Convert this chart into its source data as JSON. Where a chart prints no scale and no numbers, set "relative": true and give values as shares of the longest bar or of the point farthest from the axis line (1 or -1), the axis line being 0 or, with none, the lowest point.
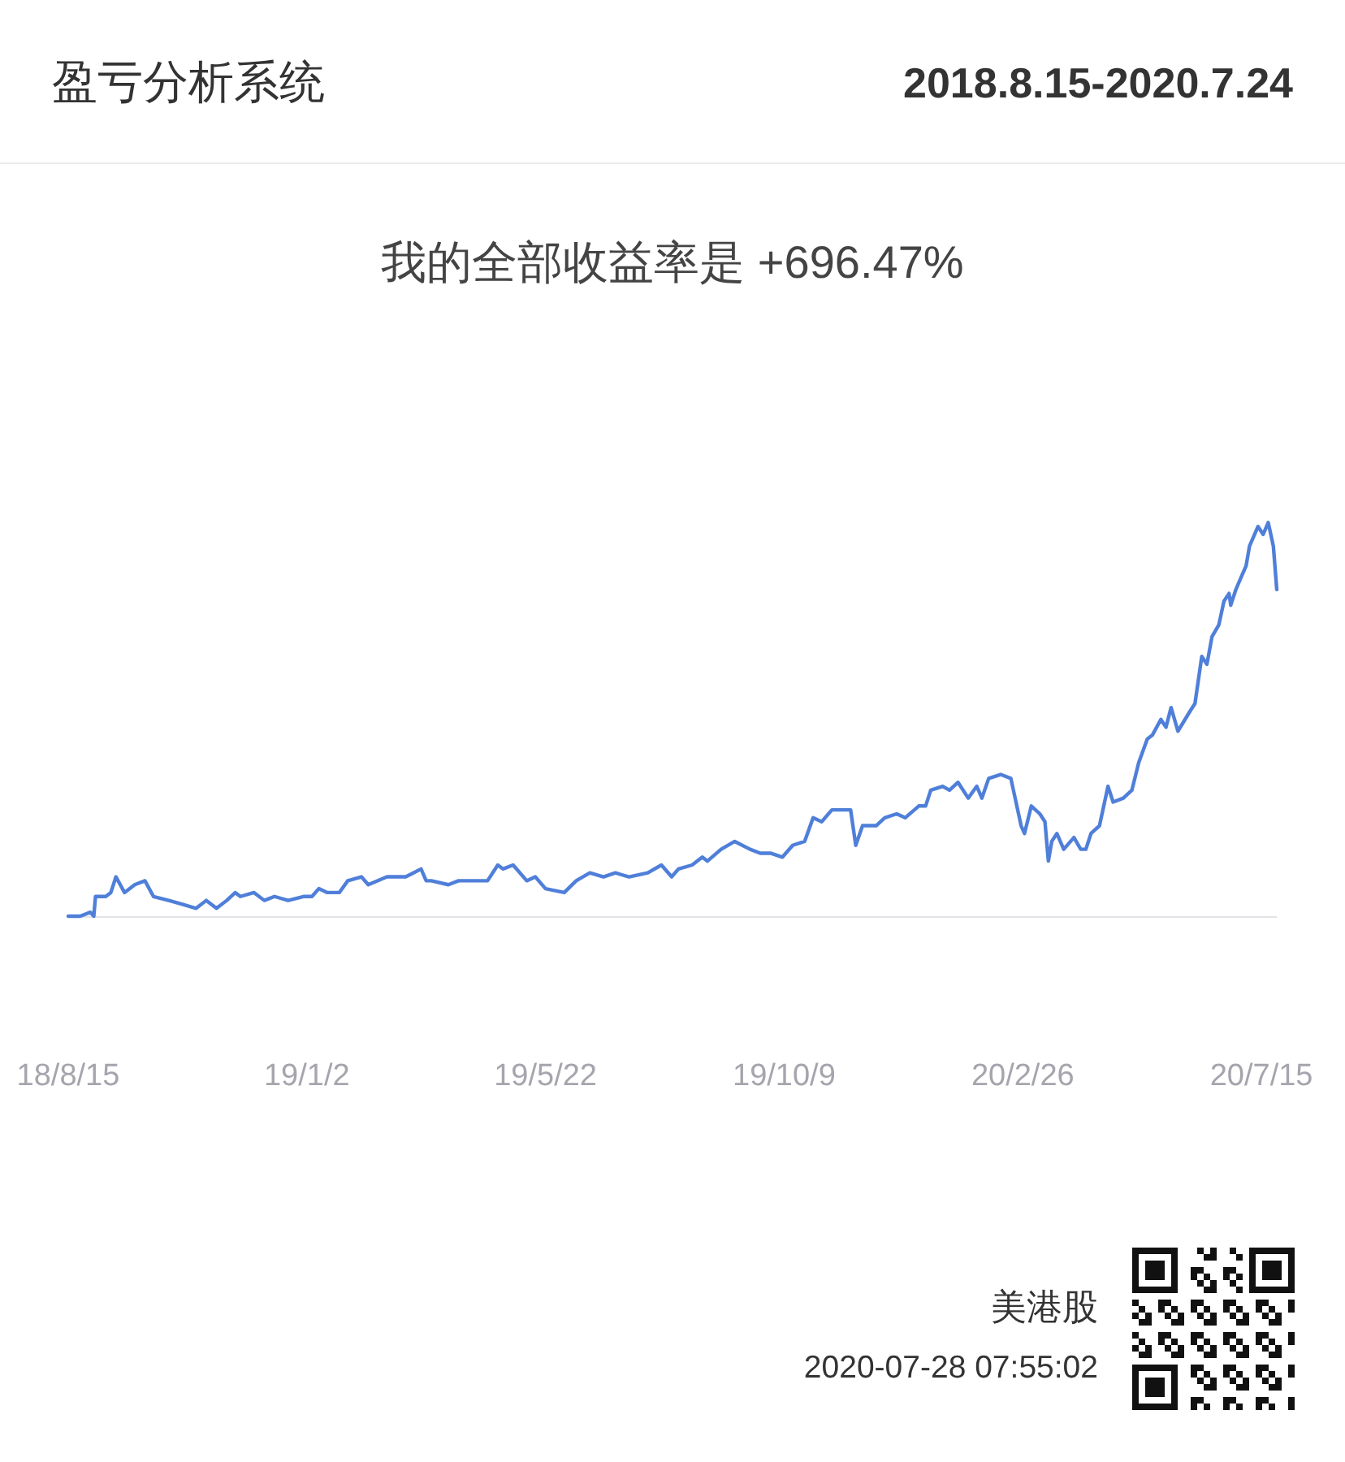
{
  "chart_data": {
    "type": "line",
    "title": "盈亏分析系统",
    "subtitle": "我的全部收益率是 +696.47%",
    "relative": true,
    "tick_labels": "x",
    "line_style": "solid",
    "xlim": [
      "2018-08-15",
      "2020-07-24"
    ],
    "xticks": [
      {
        "value": "2018-08-15",
        "label": "18/8/15"
      },
      {
        "value": "2019-01-02",
        "label": "19/1/2"
      },
      {
        "value": "2019-05-22",
        "label": "19/5/22"
      },
      {
        "value": "2019-10-09",
        "label": "19/10/9"
      },
      {
        "value": "2020-02-26",
        "label": "20/2/26"
      },
      {
        "value": "2020-07-15",
        "label": "20/7/15"
      }
    ],
    "series": [
      {
        "color": "#4f7fd9",
        "x": [
          "2018-08-15",
          "2018-08-22",
          "2018-08-28",
          "2018-08-30",
          "2018-08-31",
          "2018-09-06",
          "2018-09-09",
          "2018-09-12",
          "2018-09-17",
          "2018-09-23",
          "2018-09-29",
          "2018-10-04",
          "2018-10-13",
          "2018-10-21",
          "2018-10-29",
          "2018-11-04",
          "2018-11-10",
          "2018-11-16",
          "2018-11-21",
          "2018-11-24",
          "2018-12-02",
          "2018-12-08",
          "2018-12-14",
          "2018-12-22",
          "2018-12-31",
          "2019-01-05",
          "2019-01-09",
          "2019-01-14",
          "2019-01-21",
          "2019-01-26",
          "2019-02-03",
          "2019-02-07",
          "2019-02-18",
          "2019-03-01",
          "2019-03-10",
          "2019-03-13",
          "2019-03-16",
          "2019-03-26",
          "2019-04-01",
          "2019-04-10",
          "2019-04-18",
          "2019-04-24",
          "2019-04-27",
          "2019-05-03",
          "2019-05-11",
          "2019-05-16",
          "2019-05-22",
          "2019-06-02",
          "2019-06-09",
          "2019-06-17",
          "2019-06-25",
          "2019-07-02",
          "2019-07-10",
          "2019-07-21",
          "2019-07-29",
          "2019-08-04",
          "2019-08-08",
          "2019-08-16",
          "2019-08-22",
          "2019-08-25",
          "2019-09-02",
          "2019-09-10",
          "2019-09-19",
          "2019-09-25",
          "2019-10-01",
          "2019-10-08",
          "2019-10-14",
          "2019-10-21",
          "2019-10-26",
          "2019-10-31",
          "2019-11-06",
          "2019-11-14",
          "2019-11-17",
          "2019-11-20",
          "2019-11-24",
          "2019-12-02",
          "2019-12-07",
          "2019-12-14",
          "2019-12-19",
          "2019-12-27",
          "2019-12-31",
          "2020-01-03",
          "2020-01-10",
          "2020-01-14",
          "2020-01-19",
          "2020-01-25",
          "2020-01-30",
          "2020-02-02",
          "2020-02-06",
          "2020-02-13",
          "2020-02-19",
          "2020-02-25",
          "2020-02-27",
          "2020-03-02",
          "2020-03-07",
          "2020-03-10",
          "2020-03-12",
          "2020-03-14",
          "2020-03-17",
          "2020-03-21",
          "2020-03-27",
          "2020-03-31",
          "2020-04-03",
          "2020-04-06",
          "2020-04-11",
          "2020-04-16",
          "2020-04-19",
          "2020-04-25",
          "2020-04-30",
          "2020-05-04",
          "2020-05-09",
          "2020-05-12",
          "2020-05-17",
          "2020-05-20",
          "2020-05-23",
          "2020-05-27",
          "2020-06-03",
          "2020-06-06",
          "2020-06-10",
          "2020-06-13",
          "2020-06-16",
          "2020-06-20",
          "2020-06-23",
          "2020-06-26",
          "2020-06-27",
          "2020-06-30",
          "2020-07-03",
          "2020-07-06",
          "2020-07-08",
          "2020-07-13",
          "2020-07-16",
          "2020-07-19",
          "2020-07-22",
          "2020-07-24"
        ],
        "values": [
          0.0,
          0.0,
          0.01,
          0.0,
          0.05,
          0.05,
          0.06,
          0.1,
          0.06,
          0.08,
          0.09,
          0.05,
          0.04,
          0.03,
          0.02,
          0.04,
          0.02,
          0.04,
          0.06,
          0.05,
          0.06,
          0.04,
          0.05,
          0.04,
          0.05,
          0.05,
          0.07,
          0.06,
          0.06,
          0.09,
          0.1,
          0.08,
          0.1,
          0.1,
          0.12,
          0.09,
          0.09,
          0.08,
          0.09,
          0.09,
          0.09,
          0.13,
          0.12,
          0.13,
          0.09,
          0.1,
          0.07,
          0.06,
          0.09,
          0.11,
          0.1,
          0.11,
          0.1,
          0.11,
          0.13,
          0.1,
          0.12,
          0.13,
          0.15,
          0.14,
          0.17,
          0.19,
          0.17,
          0.16,
          0.16,
          0.15,
          0.18,
          0.19,
          0.25,
          0.24,
          0.27,
          0.27,
          0.27,
          0.18,
          0.23,
          0.23,
          0.25,
          0.26,
          0.25,
          0.28,
          0.28,
          0.32,
          0.33,
          0.32,
          0.34,
          0.3,
          0.33,
          0.3,
          0.35,
          0.36,
          0.35,
          0.23,
          0.21,
          0.28,
          0.26,
          0.24,
          0.14,
          0.19,
          0.21,
          0.17,
          0.2,
          0.17,
          0.17,
          0.21,
          0.23,
          0.33,
          0.29,
          0.3,
          0.32,
          0.39,
          0.45,
          0.46,
          0.5,
          0.48,
          0.53,
          0.47,
          0.52,
          0.54,
          0.66,
          0.64,
          0.71,
          0.74,
          0.8,
          0.82,
          0.79,
          0.83,
          0.86,
          0.89,
          0.94,
          0.99,
          0.97,
          1.0,
          0.94,
          0.83
        ]
      }
    ],
    "annotations": [
      "2018.8.15-2020.7.24",
      "美港股",
      "2020-07-28 07:55:02"
    ]
  }
}
